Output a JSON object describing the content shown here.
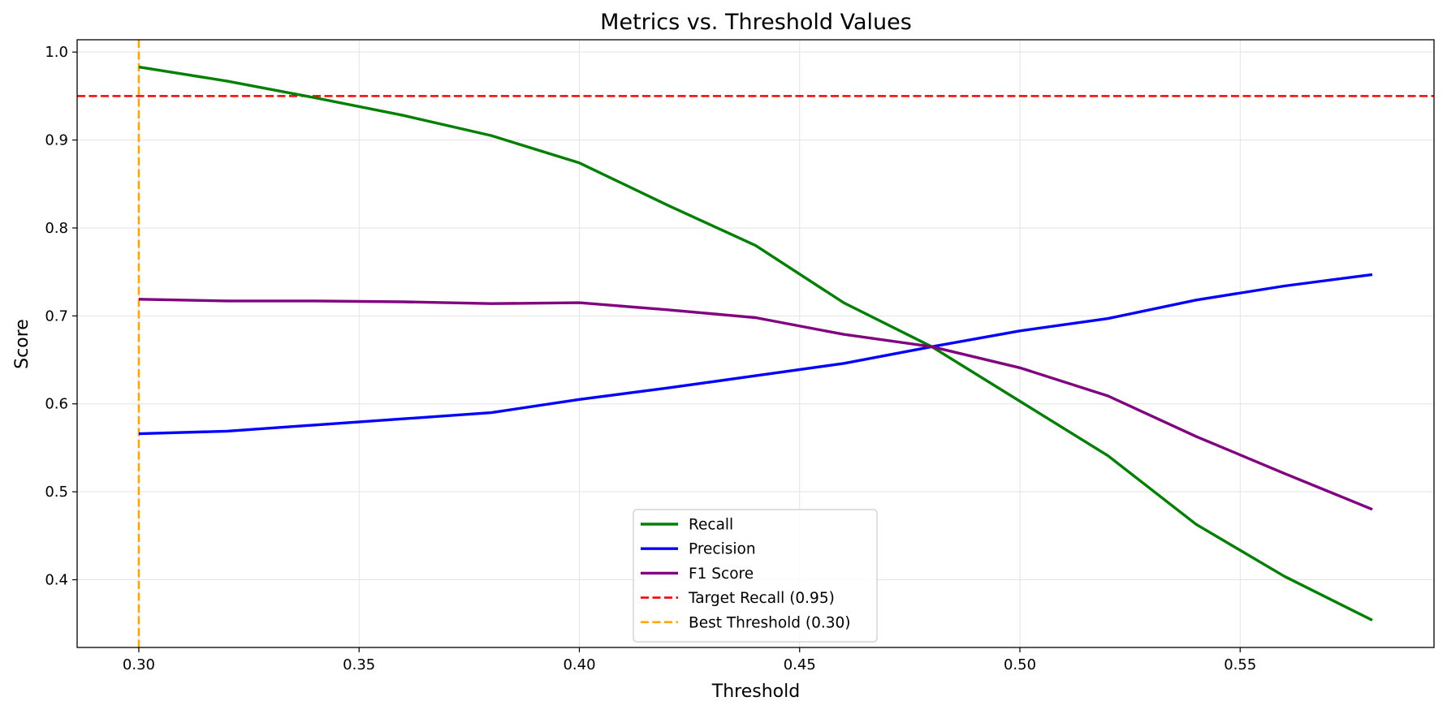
{
  "chart_data": {
    "type": "line",
    "title": "Metrics vs. Threshold Values",
    "xlabel": "Threshold",
    "ylabel": "Score",
    "xlim": [
      0.286,
      0.594
    ],
    "ylim": [
      0.323,
      1.014
    ],
    "xticks": [
      0.3,
      0.35,
      0.4,
      0.45,
      0.5,
      0.55
    ],
    "yticks": [
      0.4,
      0.5,
      0.6,
      0.7,
      0.8,
      0.9,
      1.0
    ],
    "xtick_labels": [
      "0.30",
      "0.35",
      "0.40",
      "0.45",
      "0.50",
      "0.55"
    ],
    "ytick_labels": [
      "0.4",
      "0.5",
      "0.6",
      "0.7",
      "0.8",
      "0.9",
      "1.0"
    ],
    "grid": true,
    "legend_position": "bottom-center",
    "x": [
      0.3,
      0.32,
      0.34,
      0.36,
      0.38,
      0.4,
      0.42,
      0.44,
      0.46,
      0.48,
      0.5,
      0.52,
      0.54,
      0.56,
      0.58
    ],
    "series": [
      {
        "name": "Recall",
        "color": "#008000",
        "style": "solid",
        "values": [
          0.983,
          0.967,
          0.948,
          0.928,
          0.905,
          0.874,
          0.826,
          0.78,
          0.715,
          0.665,
          0.603,
          0.541,
          0.463,
          0.404,
          0.354
        ]
      },
      {
        "name": "Precision",
        "color": "#0000ff",
        "style": "solid",
        "values": [
          0.566,
          0.569,
          0.576,
          0.583,
          0.59,
          0.605,
          0.618,
          0.632,
          0.646,
          0.665,
          0.683,
          0.697,
          0.718,
          0.734,
          0.747
        ]
      },
      {
        "name": "F1 Score",
        "color": "#800080",
        "style": "solid",
        "values": [
          0.719,
          0.717,
          0.717,
          0.716,
          0.714,
          0.715,
          0.707,
          0.698,
          0.679,
          0.665,
          0.641,
          0.609,
          0.563,
          0.521,
          0.48
        ]
      }
    ],
    "reference_lines": [
      {
        "name": "Target Recall (0.95)",
        "orientation": "horizontal",
        "value": 0.95,
        "color": "#ff0000",
        "style": "dashed"
      },
      {
        "name": "Best Threshold (0.30)",
        "orientation": "vertical",
        "value": 0.3,
        "color": "#ffa500",
        "style": "dashed"
      }
    ]
  }
}
